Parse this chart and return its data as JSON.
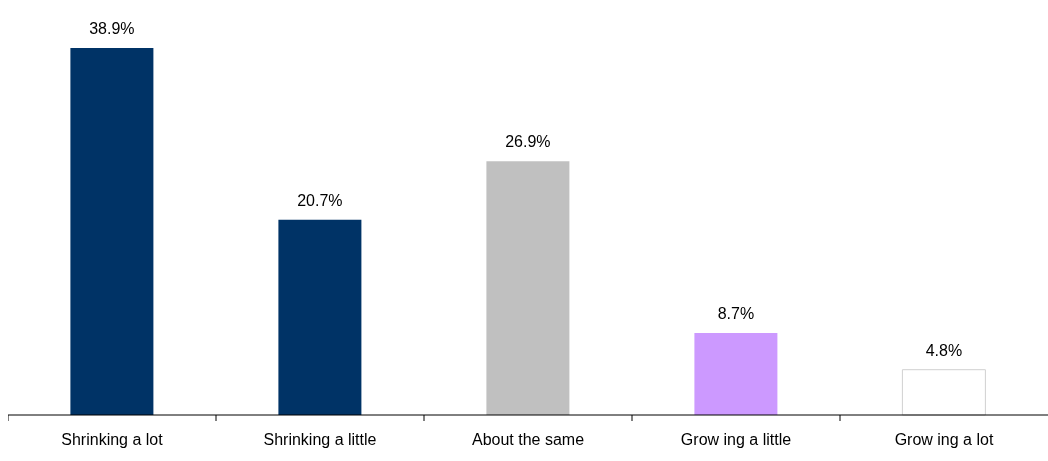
{
  "chart_data": {
    "type": "bar",
    "categories": [
      "Shrinking a lot",
      "Shrinking a little",
      "About the same",
      "Grow ing a little",
      "Grow ing a lot"
    ],
    "values": [
      38.9,
      20.7,
      26.9,
      8.7,
      4.8
    ],
    "colors": [
      "#003366",
      "#003366",
      "#c0c0c0",
      "#cc99ff",
      "#ffffff"
    ],
    "value_labels": [
      "38.9%",
      "20.7%",
      "26.9%",
      "8.7%",
      "4.8%"
    ],
    "grid": false
  }
}
